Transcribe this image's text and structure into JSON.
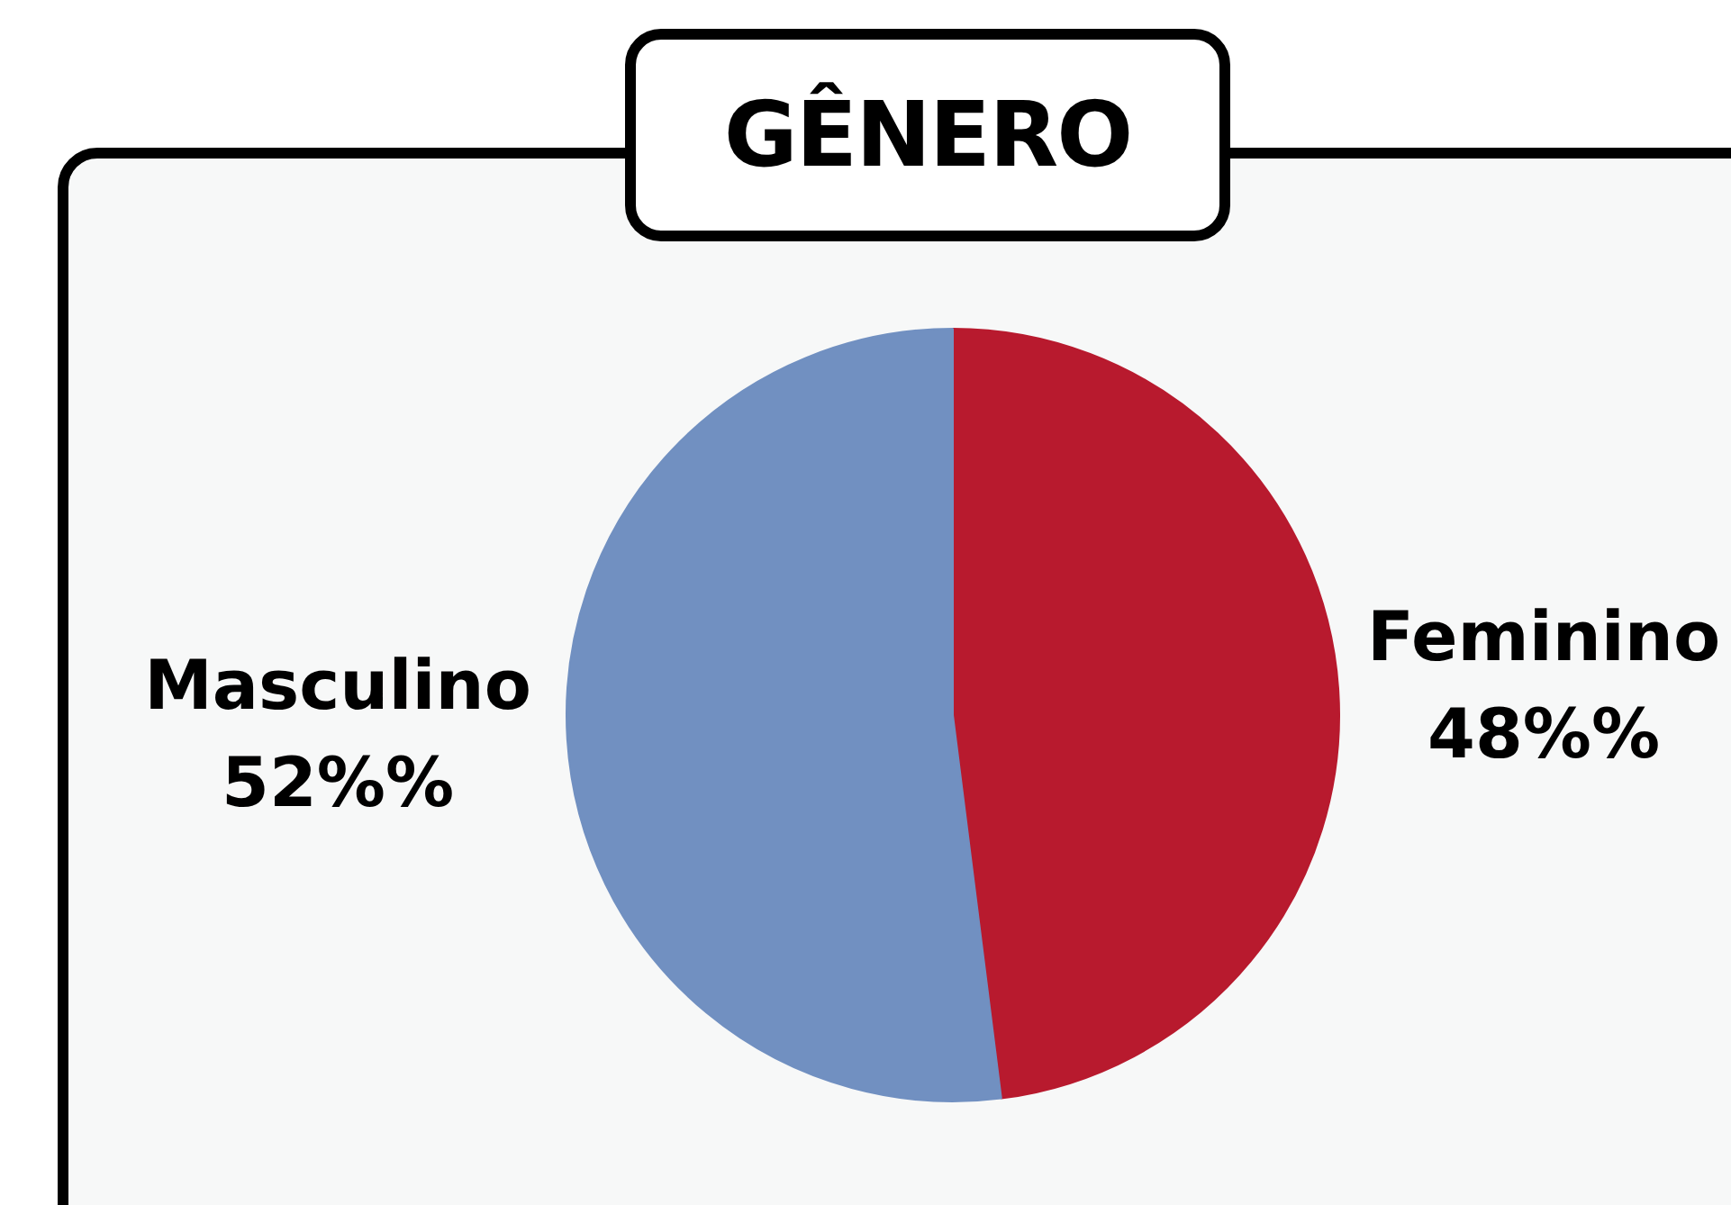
{
  "chart_data": {
    "type": "pie",
    "title": "GÊNERO",
    "categories": [
      "Feminino",
      "Masculino"
    ],
    "values": [
      48,
      52
    ],
    "value_labels": [
      "48%%",
      "52%%"
    ],
    "colors": [
      "#b81a2e",
      "#7190c1"
    ],
    "legend": false
  }
}
